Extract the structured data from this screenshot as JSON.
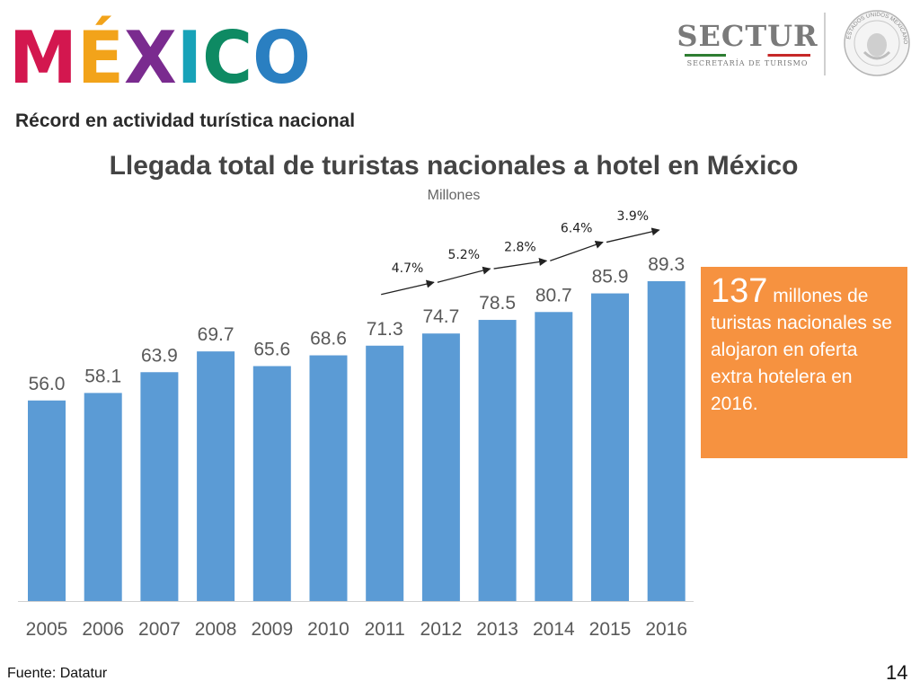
{
  "header": {
    "logo_text": "MÉXICO",
    "agency": "SECTUR",
    "agency_subtitle": "SECRETARÍA DE TURISMO",
    "seal_text": "ESTADOS UNIDOS MEXICANOS"
  },
  "slide": {
    "subtitle": "Récord en actividad turística nacional",
    "callout_number": "137",
    "callout_text": " millones de turistas nacionales se alojaron en oferta extra hotelera en 2016.",
    "source": "Fuente: Datatur",
    "page_number": "14"
  },
  "colors": {
    "bar": "#5b9bd5",
    "callout": "#f69240",
    "logo": [
      "#d3174f",
      "#f2a31a",
      "#7a2b8f",
      "#17a2b8",
      "#0e8a63",
      "#2a7fc1"
    ]
  },
  "chart_data": {
    "type": "bar",
    "title": "Llegada total de turistas nacionales a hotel en México",
    "units": "Millones",
    "xlabel": "",
    "ylabel": "",
    "categories": [
      "2005",
      "2006",
      "2007",
      "2008",
      "2009",
      "2010",
      "2011",
      "2012",
      "2013",
      "2014",
      "2015",
      "2016"
    ],
    "values": [
      56.0,
      58.1,
      63.9,
      69.7,
      65.6,
      68.6,
      71.3,
      74.7,
      78.5,
      80.7,
      85.9,
      89.3
    ],
    "value_labels": [
      "56.0",
      "58.1",
      "63.9",
      "69.7",
      "65.6",
      "68.6",
      "71.3",
      "74.7",
      "78.5",
      "80.7",
      "85.9",
      "89.3"
    ],
    "ylim": [
      0,
      89.3
    ],
    "grid": false,
    "legend": "none",
    "growth_annotations": [
      {
        "from": "2011",
        "to": "2012",
        "label": "4.7%"
      },
      {
        "from": "2012",
        "to": "2013",
        "label": "5.2%"
      },
      {
        "from": "2013",
        "to": "2014",
        "label": "2.8%"
      },
      {
        "from": "2014",
        "to": "2015",
        "label": "6.4%"
      },
      {
        "from": "2015",
        "to": "2016",
        "label": "3.9%"
      }
    ]
  }
}
